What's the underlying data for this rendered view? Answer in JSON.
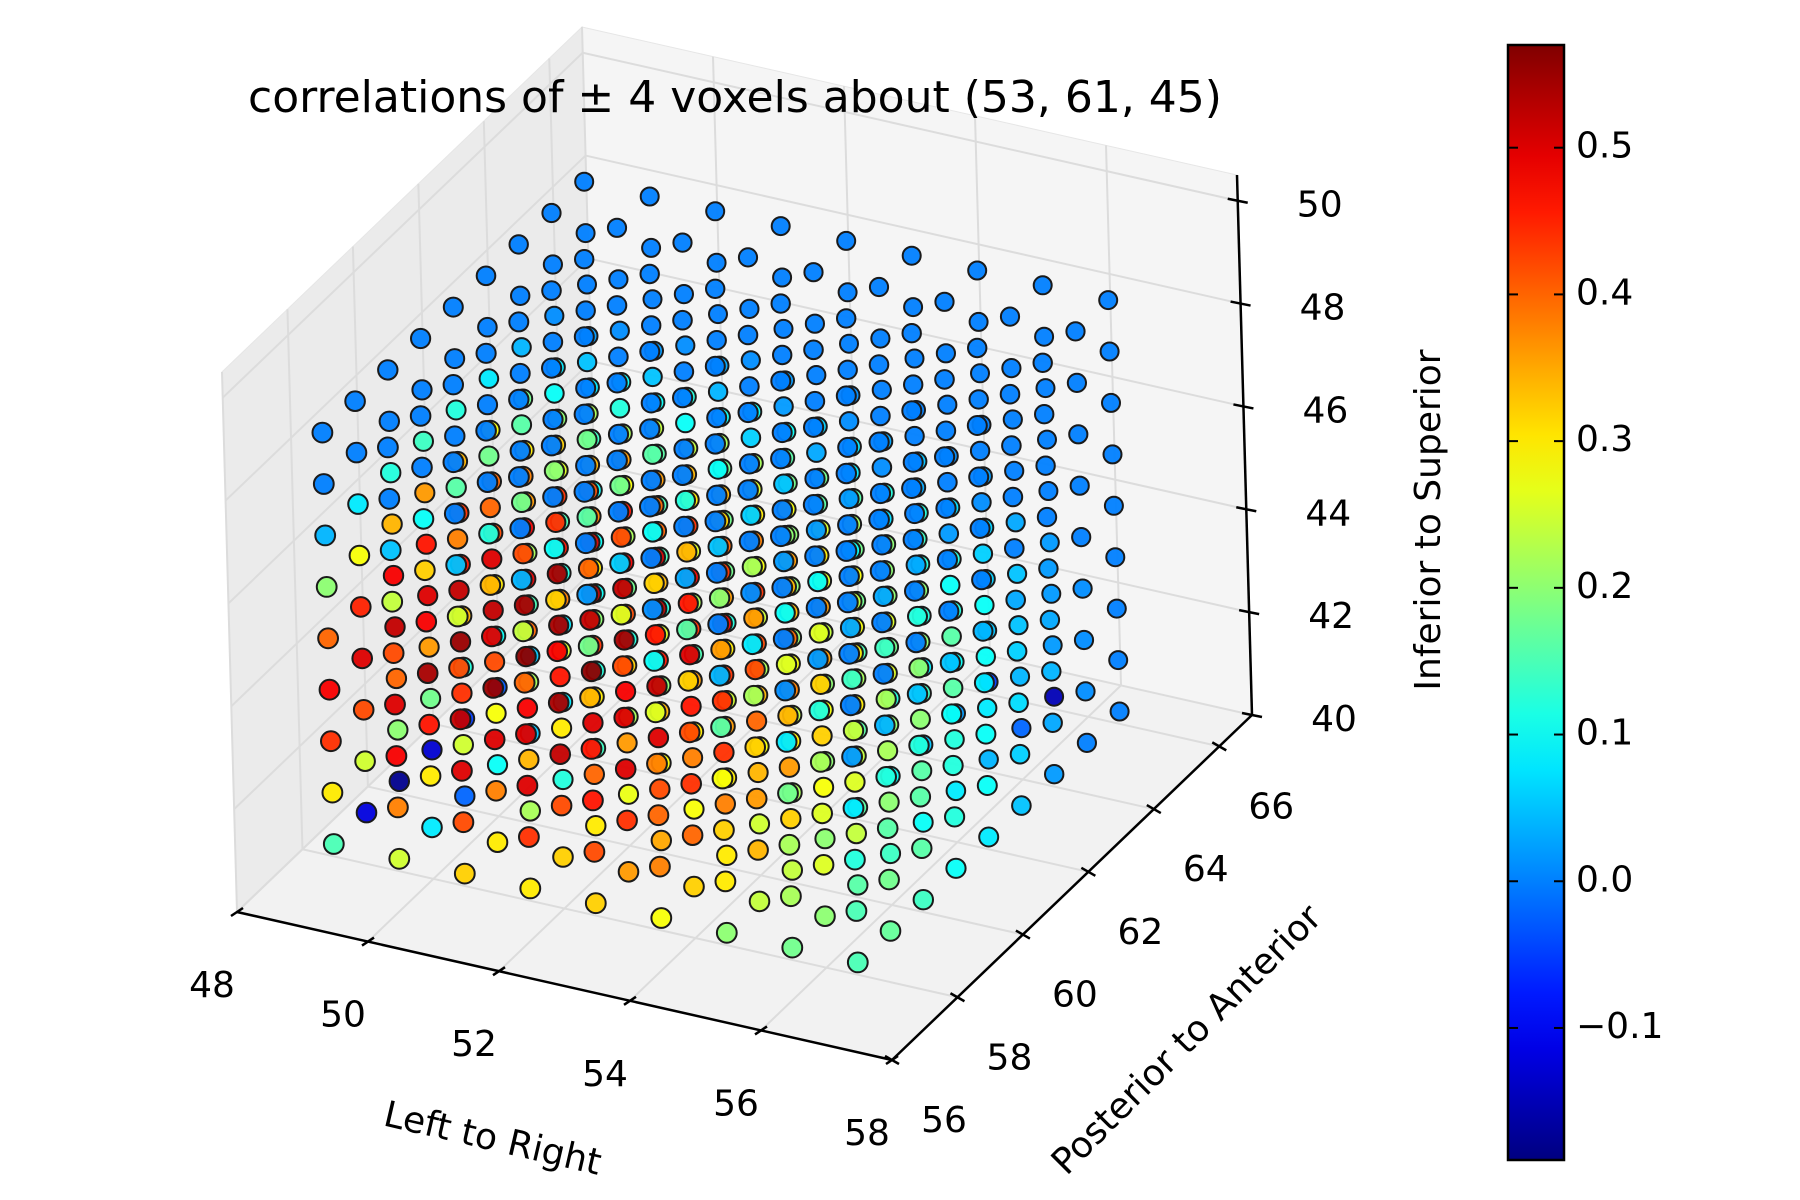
{
  "chart_data": {
    "type": "scatter",
    "projection": "3d",
    "title": "correlations of ± 4 voxels about (53, 61, 45)",
    "xlabel": "Left to Right",
    "ylabel": "Posterior to Anterior",
    "zlabel": "Inferior to Superior",
    "center": [
      53,
      61,
      45
    ],
    "half_width": 4,
    "xlim": [
      48,
      58
    ],
    "ylim": [
      56,
      67
    ],
    "zlim": [
      40,
      50.5
    ],
    "x_ticks": [
      "48",
      "50",
      "52",
      "54",
      "56",
      "58"
    ],
    "y_ticks": [
      "56",
      "58",
      "60",
      "62",
      "64",
      "66"
    ],
    "z_ticks": [
      "40",
      "42",
      "44",
      "46",
      "48",
      "50"
    ],
    "grid": true,
    "colormap": "jet",
    "color_range": [
      -0.19,
      0.57
    ],
    "colorbar": {
      "ticks": [
        "−0.1",
        "0.0",
        "0.1",
        "0.2",
        "0.3",
        "0.4",
        "0.5"
      ],
      "tick_values": [
        -0.1,
        0.0,
        0.1,
        0.2,
        0.3,
        0.4,
        0.5
      ],
      "placement": "right"
    },
    "values_description": "values_by_z: list indexed by z (41..49), each a 9x9 grid [x 49..57][y 57..65]",
    "values_by_z": [
      [
        [
          0.15,
          -0.12,
          -0.18,
          -0.13,
          -0.05,
          -0.03,
          0.05,
          0.08,
          0.1
        ],
        [
          0.25,
          0.08,
          -0.02,
          0.1,
          0.05,
          0.08,
          0.12,
          0.12,
          0.12
        ],
        [
          0.32,
          0.3,
          0.22,
          0.12,
          0.14,
          0.22,
          0.2,
          0.15,
          0.12
        ],
        [
          0.3,
          0.32,
          0.3,
          0.27,
          0.28,
          0.3,
          0.25,
          0.22,
          0.2
        ],
        [
          0.32,
          0.36,
          0.35,
          0.28,
          0.3,
          0.28,
          0.24,
          0.2,
          0.15
        ],
        [
          0.28,
          0.32,
          0.3,
          0.25,
          0.22,
          0.2,
          0.16,
          0.12,
          0.08
        ],
        [
          0.2,
          0.24,
          0.24,
          0.2,
          0.16,
          0.1,
          0.05,
          0.02,
          -0.05
        ],
        [
          0.18,
          0.2,
          0.16,
          0.14,
          0.1,
          0.08,
          0.04,
          -0.02,
          -0.15
        ],
        [
          0.15,
          0.17,
          0.14,
          0.1,
          0.08,
          0.05,
          0.02,
          0.0,
          0.0
        ]
      ],
      [
        [
          0.3,
          0.25,
          0.2,
          0.18,
          0.12,
          0.1,
          0.15,
          0.12,
          0.1
        ],
        [
          0.38,
          0.3,
          0.25,
          0.28,
          0.22,
          0.25,
          0.2,
          0.18,
          0.15
        ],
        [
          0.42,
          0.38,
          0.34,
          0.3,
          0.3,
          0.32,
          0.26,
          0.22,
          0.18
        ],
        [
          0.44,
          0.42,
          0.4,
          0.36,
          0.34,
          0.36,
          0.3,
          0.25,
          0.2
        ],
        [
          0.42,
          0.44,
          0.42,
          0.38,
          0.36,
          0.34,
          0.28,
          0.24,
          0.18
        ],
        [
          0.38,
          0.4,
          0.38,
          0.34,
          0.3,
          0.28,
          0.22,
          0.18,
          0.12
        ],
        [
          0.3,
          0.34,
          0.32,
          0.28,
          0.24,
          0.2,
          0.14,
          0.1,
          0.05
        ],
        [
          0.22,
          0.26,
          0.24,
          0.2,
          0.16,
          0.12,
          0.08,
          0.04,
          0.02
        ],
        [
          0.15,
          0.18,
          0.16,
          0.12,
          0.1,
          0.06,
          0.03,
          0.01,
          0.0
        ]
      ],
      [
        [
          0.44,
          0.42,
          0.4,
          0.36,
          0.34,
          0.3,
          0.22,
          0.15,
          0.1
        ],
        [
          0.48,
          0.46,
          0.44,
          0.42,
          0.4,
          0.38,
          0.3,
          0.22,
          0.15
        ],
        [
          0.5,
          0.5,
          0.48,
          0.46,
          0.44,
          0.42,
          0.34,
          0.26,
          0.18
        ],
        [
          0.5,
          0.52,
          0.5,
          0.48,
          0.46,
          0.44,
          0.36,
          0.28,
          0.2
        ],
        [
          0.46,
          0.5,
          0.5,
          0.46,
          0.44,
          0.42,
          0.34,
          0.26,
          0.18
        ],
        [
          0.4,
          0.44,
          0.44,
          0.4,
          0.38,
          0.36,
          0.28,
          0.2,
          0.12
        ],
        [
          0.32,
          0.36,
          0.36,
          0.32,
          0.3,
          0.26,
          0.2,
          0.12,
          0.06
        ],
        [
          0.22,
          0.26,
          0.26,
          0.22,
          0.2,
          0.16,
          0.1,
          0.05,
          0.02
        ],
        [
          0.12,
          0.16,
          0.16,
          0.12,
          0.1,
          0.07,
          0.04,
          0.01,
          0.0
        ]
      ],
      [
        [
          0.48,
          0.5,
          0.52,
          0.5,
          0.46,
          0.42,
          0.36,
          0.26,
          0.14
        ],
        [
          0.5,
          0.54,
          0.55,
          0.52,
          0.5,
          0.46,
          0.38,
          0.28,
          0.16
        ],
        [
          0.52,
          0.55,
          0.56,
          0.54,
          0.52,
          0.48,
          0.4,
          0.3,
          0.18
        ],
        [
          0.5,
          0.54,
          0.56,
          0.54,
          0.52,
          0.48,
          0.4,
          0.3,
          0.18
        ],
        [
          0.46,
          0.5,
          0.52,
          0.5,
          0.48,
          0.44,
          0.36,
          0.26,
          0.16
        ],
        [
          0.38,
          0.42,
          0.44,
          0.42,
          0.4,
          0.36,
          0.28,
          0.2,
          0.12
        ],
        [
          0.28,
          0.32,
          0.34,
          0.32,
          0.3,
          0.26,
          0.2,
          0.12,
          0.06
        ],
        [
          0.18,
          0.22,
          0.24,
          0.22,
          0.2,
          0.16,
          0.1,
          0.05,
          0.02
        ],
        [
          0.08,
          0.12,
          0.12,
          0.1,
          0.08,
          0.06,
          0.03,
          0.01,
          0.0
        ]
      ],
      [
        [
          0.4,
          0.45,
          0.48,
          0.46,
          0.44,
          0.4,
          0.3,
          0.2,
          0.08
        ],
        [
          0.42,
          0.48,
          0.52,
          0.5,
          0.48,
          0.44,
          0.34,
          0.22,
          0.1
        ],
        [
          0.42,
          0.5,
          0.54,
          0.54,
          0.5,
          0.46,
          0.36,
          0.24,
          0.1
        ],
        [
          0.4,
          0.48,
          0.52,
          0.52,
          0.5,
          0.44,
          0.34,
          0.22,
          0.1
        ],
        [
          0.34,
          0.42,
          0.46,
          0.46,
          0.44,
          0.38,
          0.28,
          0.18,
          0.08
        ],
        [
          0.26,
          0.32,
          0.36,
          0.36,
          0.34,
          0.3,
          0.22,
          0.12,
          0.05
        ],
        [
          0.16,
          0.22,
          0.26,
          0.26,
          0.24,
          0.2,
          0.14,
          0.07,
          0.02
        ],
        [
          0.08,
          0.12,
          0.14,
          0.14,
          0.12,
          0.1,
          0.06,
          0.03,
          0.0
        ],
        [
          0.02,
          0.04,
          0.05,
          0.05,
          0.04,
          0.03,
          0.02,
          0.0,
          0.0
        ]
      ],
      [
        [
          0.2,
          0.28,
          0.34,
          0.36,
          0.34,
          0.28,
          0.18,
          0.08,
          0.02
        ],
        [
          0.24,
          0.32,
          0.38,
          0.4,
          0.38,
          0.32,
          0.22,
          0.1,
          0.02
        ],
        [
          0.25,
          0.34,
          0.42,
          0.44,
          0.42,
          0.36,
          0.24,
          0.12,
          0.03
        ],
        [
          0.24,
          0.32,
          0.4,
          0.42,
          0.4,
          0.34,
          0.22,
          0.1,
          0.02
        ],
        [
          0.18,
          0.26,
          0.32,
          0.34,
          0.32,
          0.26,
          0.16,
          0.06,
          0.01
        ],
        [
          0.1,
          0.16,
          0.2,
          0.22,
          0.2,
          0.16,
          0.08,
          0.03,
          0.0
        ],
        [
          0.04,
          0.08,
          0.1,
          0.1,
          0.1,
          0.07,
          0.03,
          0.01,
          0.0
        ],
        [
          0.01,
          0.02,
          0.03,
          0.03,
          0.03,
          0.02,
          0.01,
          0.0,
          0.0
        ],
        [
          0.0,
          0.0,
          0.0,
          0.0,
          0.0,
          0.0,
          0.0,
          0.0,
          0.0
        ]
      ],
      [
        [
          0.04,
          0.08,
          0.12,
          0.14,
          0.12,
          0.08,
          0.04,
          0.01,
          0.0
        ],
        [
          0.05,
          0.1,
          0.16,
          0.18,
          0.16,
          0.1,
          0.05,
          0.01,
          0.0
        ],
        [
          0.05,
          0.12,
          0.18,
          0.2,
          0.18,
          0.12,
          0.05,
          0.01,
          0.0
        ],
        [
          0.04,
          0.1,
          0.16,
          0.18,
          0.16,
          0.1,
          0.04,
          0.01,
          0.0
        ],
        [
          0.02,
          0.06,
          0.1,
          0.12,
          0.1,
          0.06,
          0.02,
          0.0,
          0.0
        ],
        [
          0.01,
          0.03,
          0.05,
          0.06,
          0.05,
          0.03,
          0.01,
          0.0,
          0.0
        ],
        [
          0.0,
          0.01,
          0.02,
          0.02,
          0.02,
          0.01,
          0.0,
          0.0,
          0.0
        ],
        [
          0.0,
          0.0,
          0.0,
          0.0,
          0.0,
          0.0,
          0.0,
          0.0,
          0.0
        ],
        [
          0.0,
          0.0,
          0.0,
          0.0,
          0.0,
          0.0,
          0.0,
          0.0,
          0.0
        ]
      ],
      [
        [
          0.0,
          0.0,
          0.0,
          0.0,
          0.0,
          0.0,
          0.0,
          0.0,
          0.0
        ],
        [
          0.0,
          0.0,
          0.0,
          0.0,
          0.0,
          0.0,
          0.0,
          0.0,
          0.0
        ],
        [
          0.0,
          0.0,
          0.0,
          0.0,
          0.0,
          0.0,
          0.0,
          0.0,
          0.0
        ],
        [
          0.0,
          0.0,
          0.0,
          0.0,
          0.0,
          0.0,
          0.0,
          0.0,
          0.0
        ],
        [
          0.0,
          0.0,
          0.0,
          0.0,
          0.0,
          0.0,
          0.0,
          0.0,
          0.0
        ],
        [
          0.0,
          0.0,
          0.0,
          0.0,
          0.0,
          0.0,
          0.0,
          0.0,
          0.0
        ],
        [
          0.0,
          0.0,
          0.0,
          0.0,
          0.0,
          0.0,
          0.0,
          0.0,
          0.0
        ],
        [
          0.0,
          0.0,
          0.0,
          0.0,
          0.0,
          0.0,
          0.0,
          0.0,
          0.0
        ],
        [
          0.0,
          0.0,
          0.0,
          0.0,
          0.0,
          0.0,
          0.0,
          0.0,
          0.0
        ]
      ],
      [
        [
          0.0,
          0.0,
          0.0,
          0.0,
          0.0,
          0.0,
          0.0,
          0.0,
          0.0
        ],
        [
          0.0,
          0.0,
          0.0,
          0.0,
          0.0,
          0.0,
          0.0,
          0.0,
          0.0
        ],
        [
          0.0,
          0.0,
          0.0,
          0.0,
          0.0,
          0.0,
          0.0,
          0.0,
          0.0
        ],
        [
          0.0,
          0.0,
          0.0,
          0.0,
          0.0,
          0.0,
          0.0,
          0.0,
          0.0
        ],
        [
          0.0,
          0.0,
          0.0,
          0.0,
          0.0,
          0.0,
          0.0,
          0.0,
          0.0
        ],
        [
          0.0,
          0.0,
          0.0,
          0.0,
          0.0,
          0.0,
          0.0,
          0.0,
          0.0
        ],
        [
          0.0,
          0.0,
          0.0,
          0.0,
          0.0,
          0.0,
          0.0,
          0.0,
          0.0
        ],
        [
          0.0,
          0.0,
          0.0,
          0.0,
          0.0,
          0.0,
          0.0,
          0.0,
          0.0
        ],
        [
          0.0,
          0.0,
          0.0,
          0.0,
          0.0,
          0.0,
          0.0,
          0.0,
          0.0
        ]
      ]
    ]
  }
}
